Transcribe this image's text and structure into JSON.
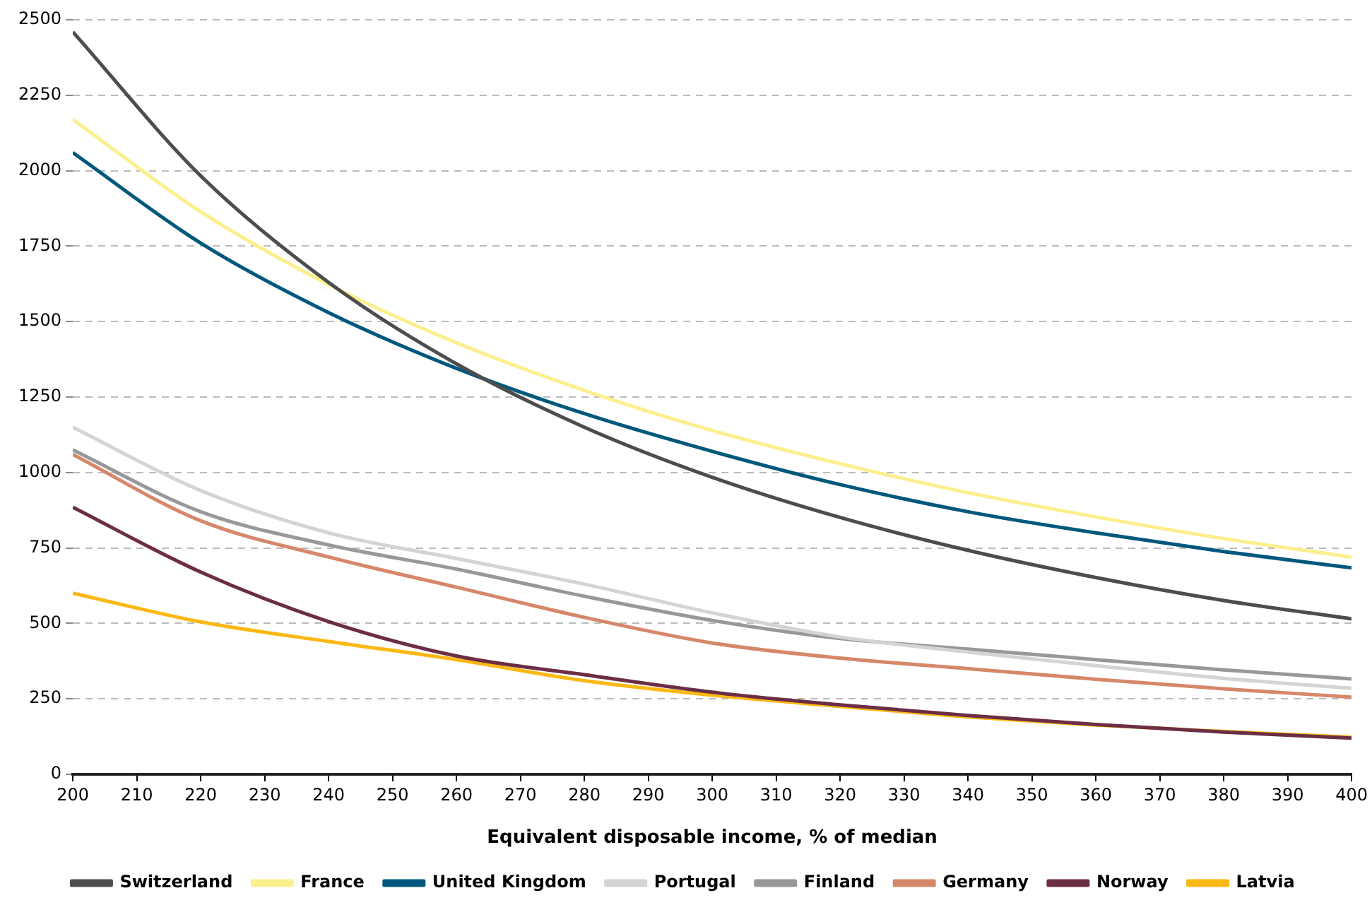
{
  "chart_data": {
    "type": "line",
    "xlabel": "Equivalent disposable income, % of median",
    "x": [
      200,
      220,
      240,
      260,
      280,
      300,
      320,
      340,
      360,
      380,
      400
    ],
    "series": [
      {
        "name": "Switzerland",
        "color": "#4d4d4f",
        "values": [
          2460,
          1983,
          1630,
          1360,
          1150,
          984,
          851,
          742,
          652,
          576,
          515
        ]
      },
      {
        "name": "France",
        "color": "#fcef8e",
        "values": [
          2170,
          1864,
          1623,
          1430,
          1272,
          1139,
          1029,
          933,
          853,
          781,
          720
        ]
      },
      {
        "name": "United Kingdom",
        "color": "#00587c",
        "values": [
          2060,
          1760,
          1530,
          1345,
          1195,
          1070,
          960,
          870,
          800,
          738,
          684
        ]
      },
      {
        "name": "Portugal",
        "color": "#d4d4d4",
        "values": [
          1150,
          940,
          800,
          715,
          630,
          535,
          455,
          405,
          360,
          318,
          285
        ]
      },
      {
        "name": "Finland",
        "color": "#97989a",
        "values": [
          1075,
          870,
          760,
          680,
          590,
          510,
          450,
          415,
          380,
          346,
          316
        ]
      },
      {
        "name": "Germany",
        "color": "#d6876a",
        "values": [
          1060,
          840,
          720,
          620,
          520,
          435,
          385,
          350,
          315,
          283,
          256
        ]
      },
      {
        "name": "Norway",
        "color": "#6b2e45",
        "values": [
          885,
          670,
          506,
          392,
          330,
          272,
          230,
          195,
          165,
          140,
          120
        ]
      },
      {
        "name": "Latvia",
        "color": "#fbb813",
        "values": [
          600,
          505,
          440,
          380,
          310,
          262,
          225,
          190,
          163,
          142,
          123
        ]
      }
    ],
    "xlim": [
      200,
      400
    ],
    "xticks": [
      200,
      210,
      220,
      230,
      240,
      250,
      260,
      270,
      280,
      290,
      300,
      310,
      320,
      330,
      340,
      350,
      360,
      370,
      380,
      390,
      400
    ],
    "ylim": [
      0,
      2500
    ],
    "yticks": [
      0,
      250,
      500,
      750,
      1000,
      1250,
      1500,
      1750,
      2000,
      2250,
      2500
    ],
    "grid": "y",
    "legend": "bottom",
    "marker": "none",
    "line_style": "solid"
  }
}
